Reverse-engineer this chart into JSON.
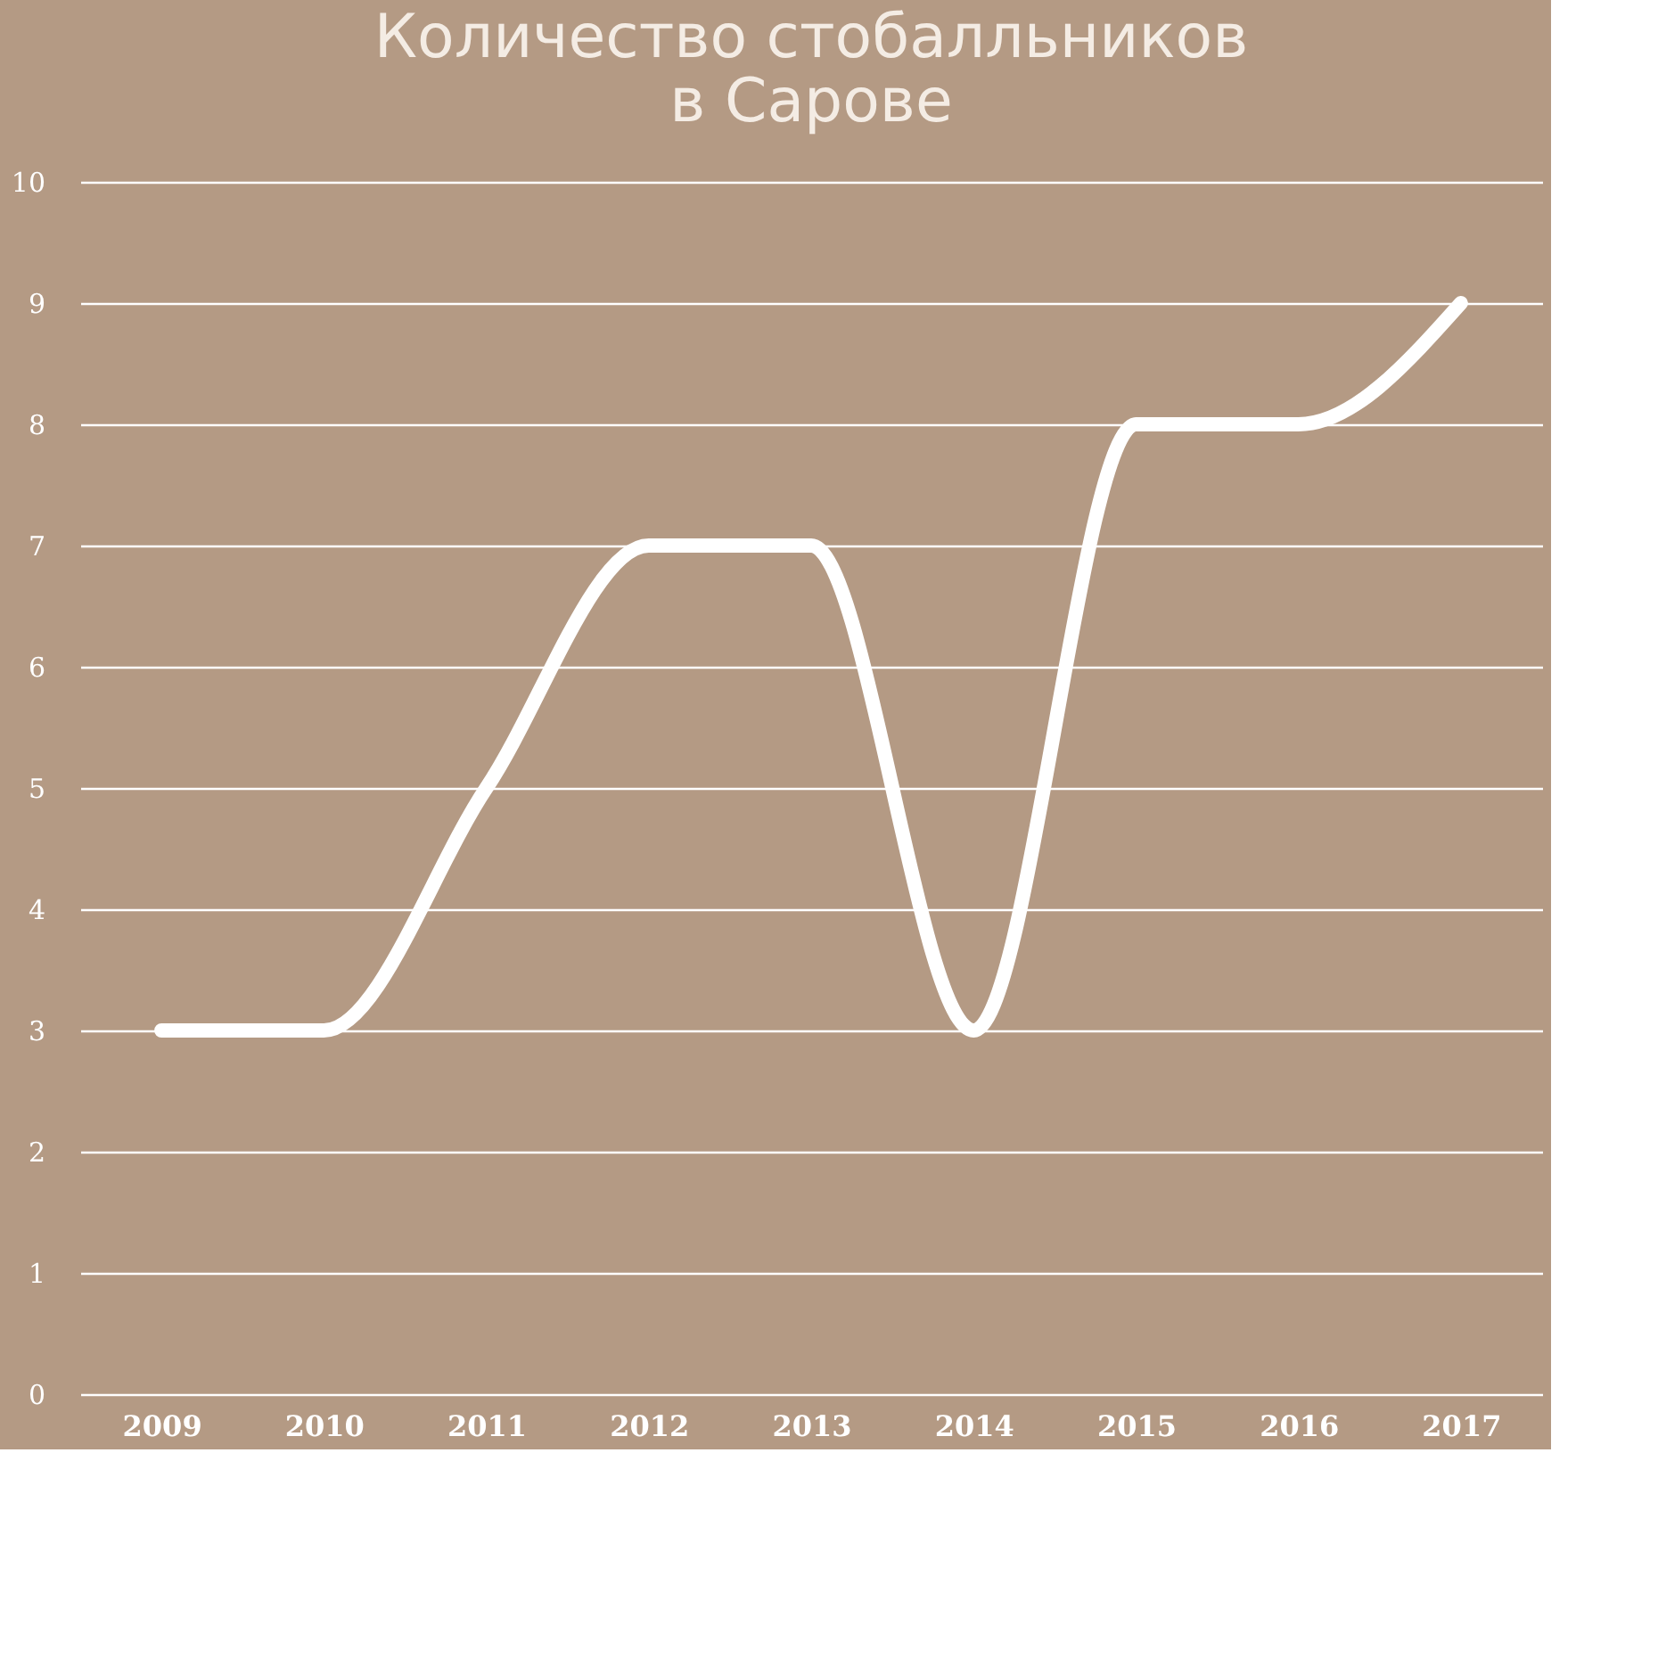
{
  "chart_data": {
    "type": "line",
    "title": [
      "Количество стобалльников",
      "в Сарове"
    ],
    "categories": [
      "2009",
      "2010",
      "2011",
      "2012",
      "2013",
      "2014",
      "2015",
      "2016",
      "2017"
    ],
    "series": [
      {
        "color": "#ffffff",
        "values": [
          3,
          3,
          5,
          7,
          7,
          3,
          8,
          8,
          9
        ]
      }
    ],
    "ylim": [
      0,
      10
    ],
    "yticks": [
      0,
      1,
      2,
      3,
      4,
      5,
      6,
      7,
      8,
      9,
      10
    ],
    "grid": "y",
    "legend": false,
    "marker": "none",
    "line_style": "solid"
  }
}
